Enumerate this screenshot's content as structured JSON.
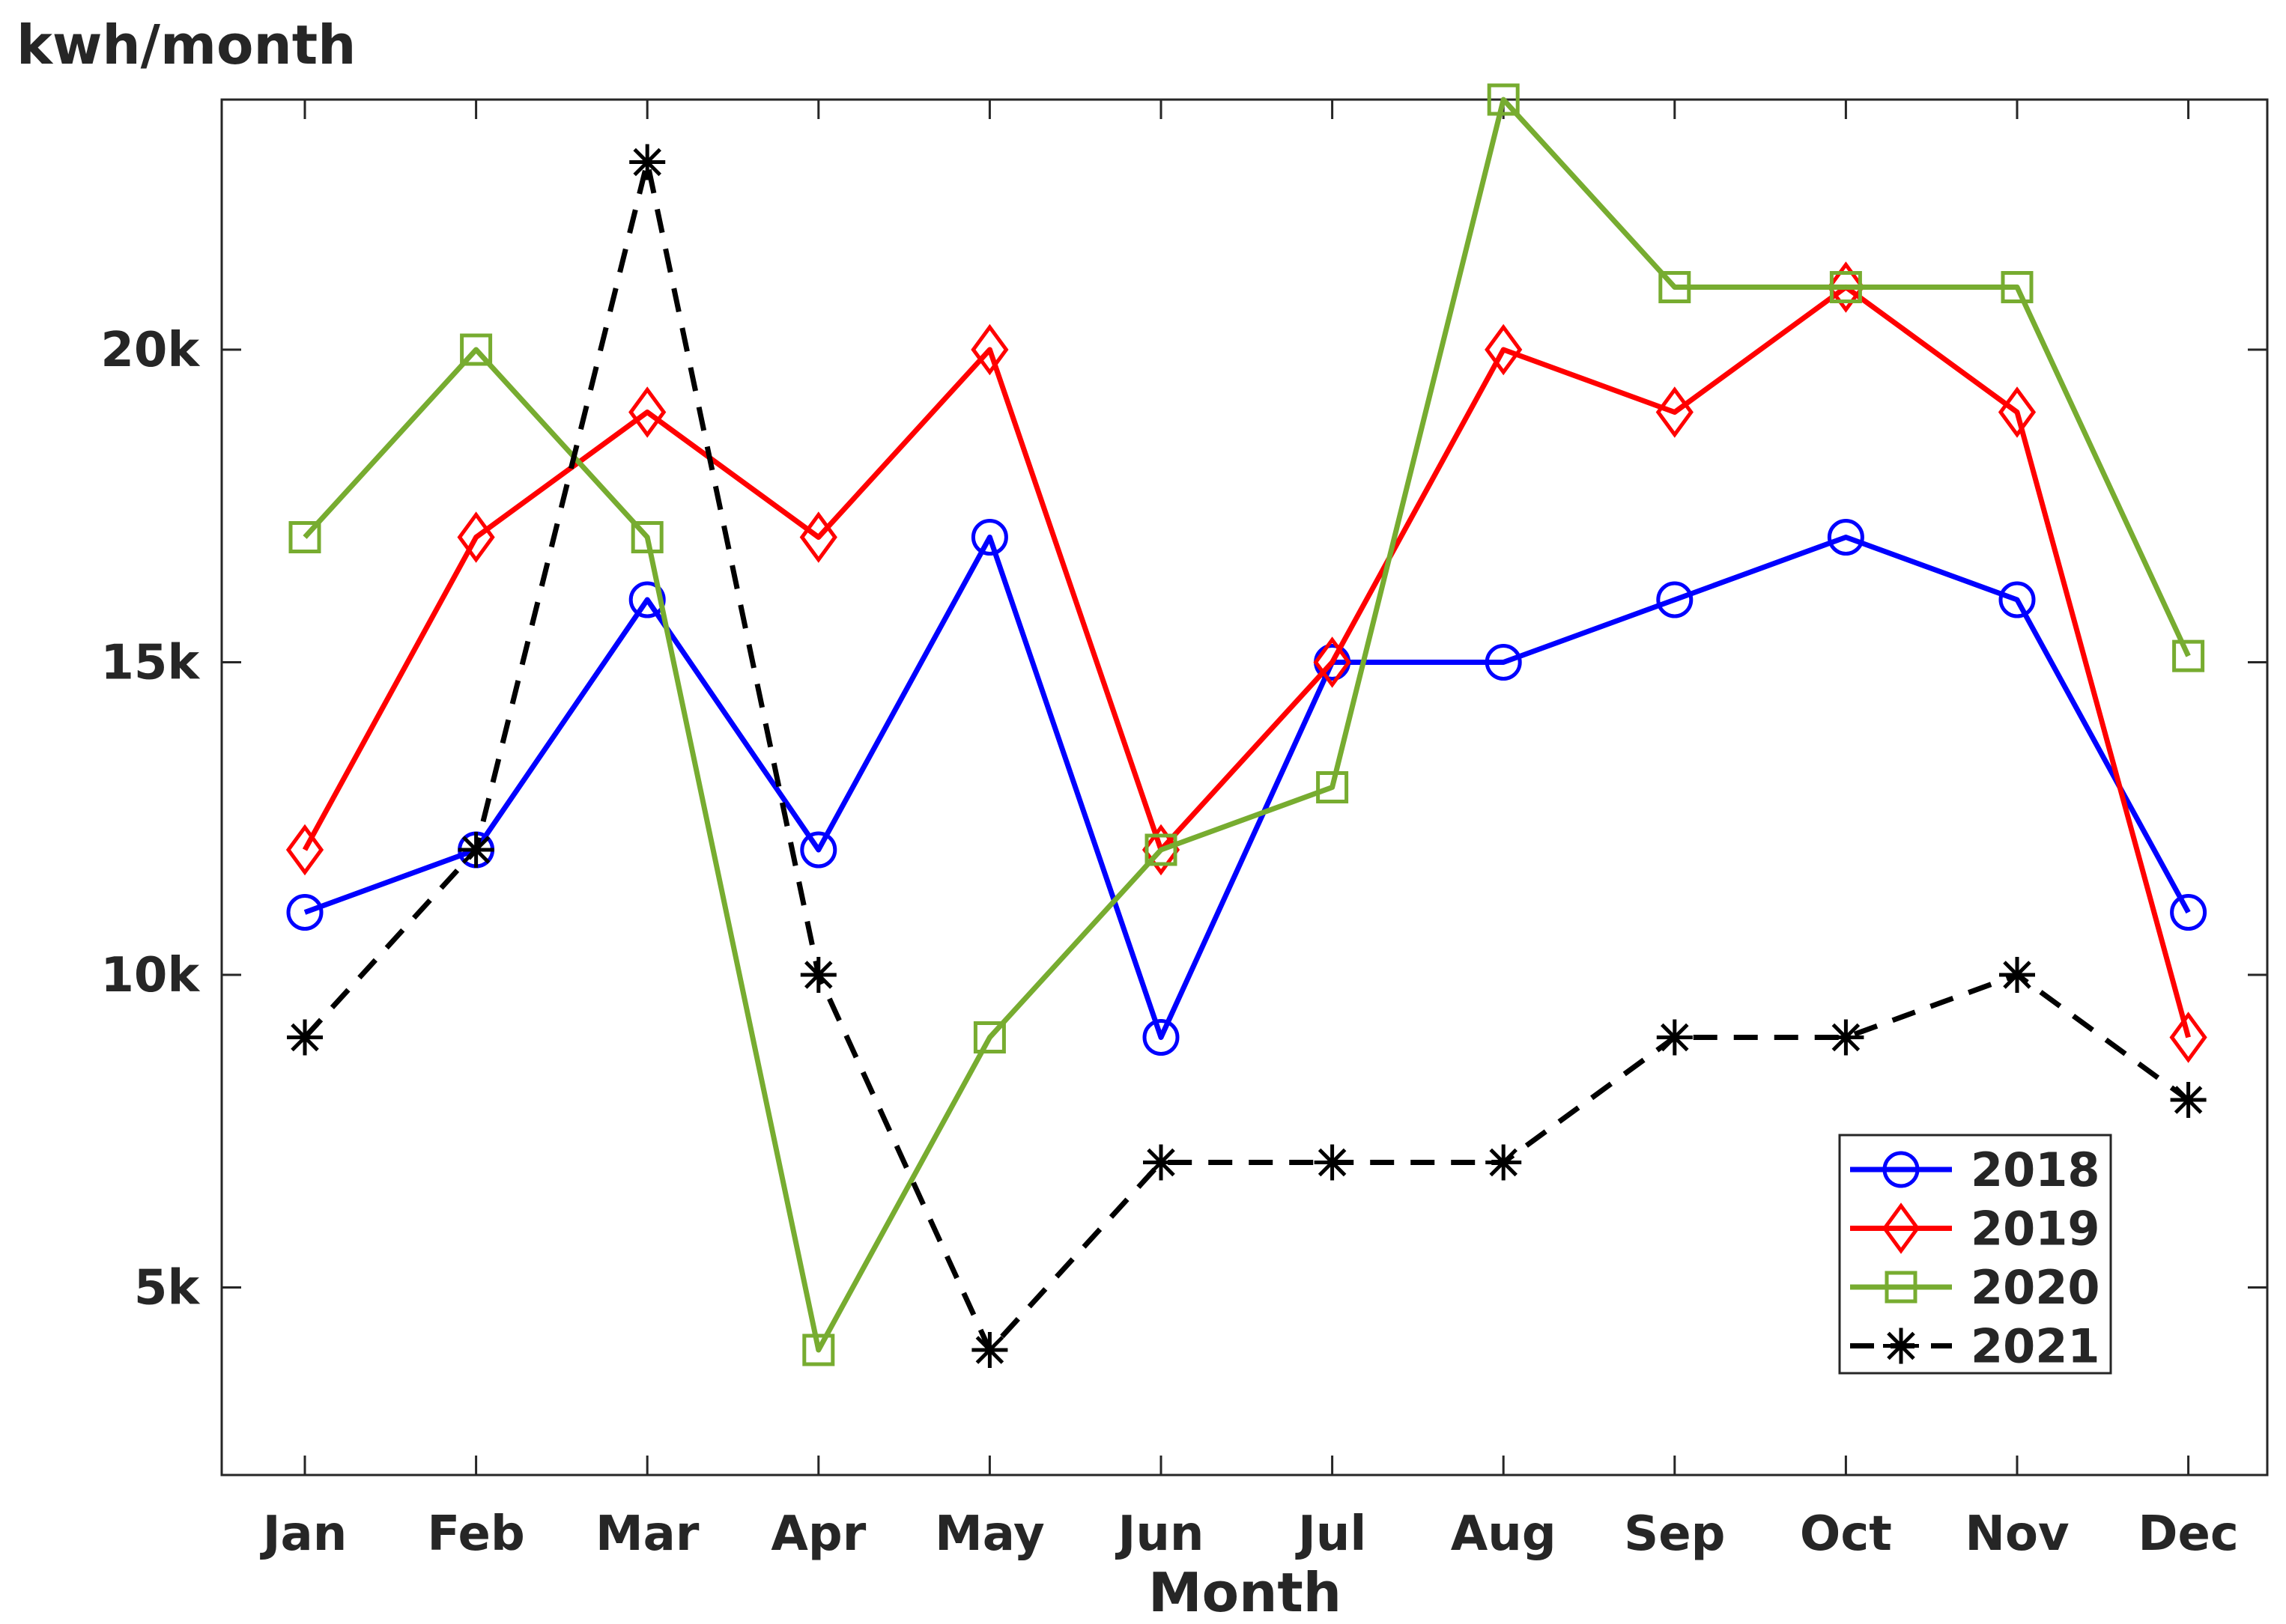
{
  "chart_data": {
    "type": "line",
    "title": "",
    "ylabel": "kwh/month",
    "xlabel": "Month",
    "categories": [
      "Jan",
      "Feb",
      "Mar",
      "Apr",
      "May",
      "Jun",
      "Jul",
      "Aug",
      "Sep",
      "Oct",
      "Nov",
      "Dec"
    ],
    "ylim": [
      2000,
      24000
    ],
    "yticks": [
      5000,
      10000,
      15000,
      20000
    ],
    "ytick_labels": [
      "5k",
      "10k",
      "15k",
      "20k"
    ],
    "grid": false,
    "legend_position": "bottom-right",
    "series": [
      {
        "name": "2018",
        "color": "#0000ff",
        "marker": "circle",
        "line": "solid",
        "values": [
          11000,
          12000,
          16000,
          12000,
          17000,
          9000,
          15000,
          15000,
          16000,
          17000,
          16000,
          11000
        ]
      },
      {
        "name": "2019",
        "color": "#ff0000",
        "marker": "diamond",
        "line": "solid",
        "values": [
          12000,
          17000,
          19000,
          17000,
          20000,
          12000,
          15000,
          20000,
          19000,
          21000,
          19000,
          9000
        ]
      },
      {
        "name": "2020",
        "color": "#77ac30",
        "marker": "square",
        "line": "solid",
        "values": [
          17000,
          20000,
          17000,
          4000,
          9000,
          12000,
          13000,
          24000,
          21000,
          21000,
          21000,
          15100
        ]
      },
      {
        "name": "2021",
        "color": "#000000",
        "marker": "asterisk",
        "line": "dashed",
        "values": [
          9000,
          12000,
          23000,
          10000,
          4000,
          7000,
          7000,
          7000,
          9000,
          9000,
          10000,
          8000
        ]
      }
    ]
  }
}
